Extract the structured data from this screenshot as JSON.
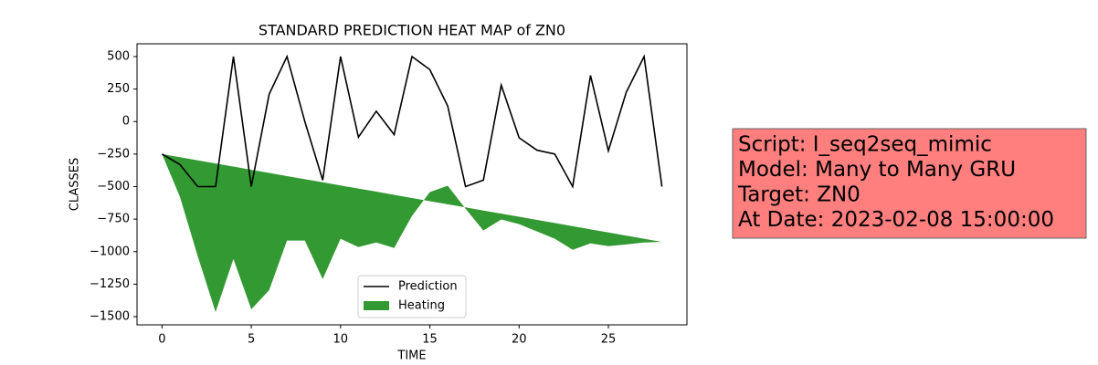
{
  "chart_data": {
    "type": "line",
    "title": "STANDARD PREDICTION HEAT MAP of ZN0",
    "x_label": "TIME",
    "y_label": "CLASSES",
    "x": [
      0,
      1,
      2,
      3,
      4,
      5,
      6,
      7,
      8,
      9,
      10,
      11,
      12,
      13,
      14,
      15,
      16,
      17,
      18,
      19,
      20,
      21,
      22,
      23,
      24,
      25,
      26,
      27,
      28
    ],
    "series": [
      {
        "name": "Prediction",
        "color": "#000000",
        "values": [
          -250,
          -330,
          -500,
          -500,
          500,
          -500,
          210,
          500,
          0,
          -450,
          500,
          -120,
          80,
          -100,
          500,
          400,
          120,
          -500,
          -450,
          280,
          -125,
          -220,
          -250,
          -500,
          355,
          -225,
          225,
          500,
          -500
        ]
      },
      {
        "name": "Heating",
        "color": "#339933",
        "fill": true,
        "values": [
          -250,
          -577,
          -1035,
          -1465,
          -1056,
          -1444,
          -1296,
          -915,
          -915,
          -1211,
          -901,
          -965,
          -930,
          -972,
          -725,
          -542,
          -493,
          -670,
          -838,
          -753,
          -789,
          -845,
          -901,
          -986,
          -937,
          -958,
          -945,
          -930,
          -925
        ],
        "base": [
          -250,
          -274,
          -298,
          -322,
          -346,
          -371,
          -395,
          -419,
          -443,
          -467,
          -491,
          -515,
          -539,
          -563,
          -588,
          -612,
          -636,
          -660,
          -684,
          -708,
          -732,
          -756,
          -780,
          -804,
          -829,
          -853,
          -877,
          -901,
          -925
        ]
      }
    ],
    "xlim": [
      -1.4,
      29.4
    ],
    "xticks": [
      0,
      5,
      10,
      15,
      20,
      25
    ],
    "ylim": [
      -1563,
      598
    ],
    "yticks": [
      500,
      250,
      0,
      {
        "value": -250,
        "label": "−250"
      },
      {
        "value": -500,
        "label": "−500"
      },
      {
        "value": -750,
        "label": "−750"
      },
      {
        "value": -1000,
        "label": "−1000"
      },
      {
        "value": -1250,
        "label": "−1250"
      },
      {
        "value": -1500,
        "label": "−1500"
      }
    ],
    "legend": "lower center",
    "annotation": {
      "color": "#ff7f7f",
      "lines": [
        "Script: I_seq2seq_mimic",
        "Model: Many to Many GRU",
        "Target: ZN0",
        "At Date: 2023-02-08 15:00:00"
      ]
    }
  }
}
